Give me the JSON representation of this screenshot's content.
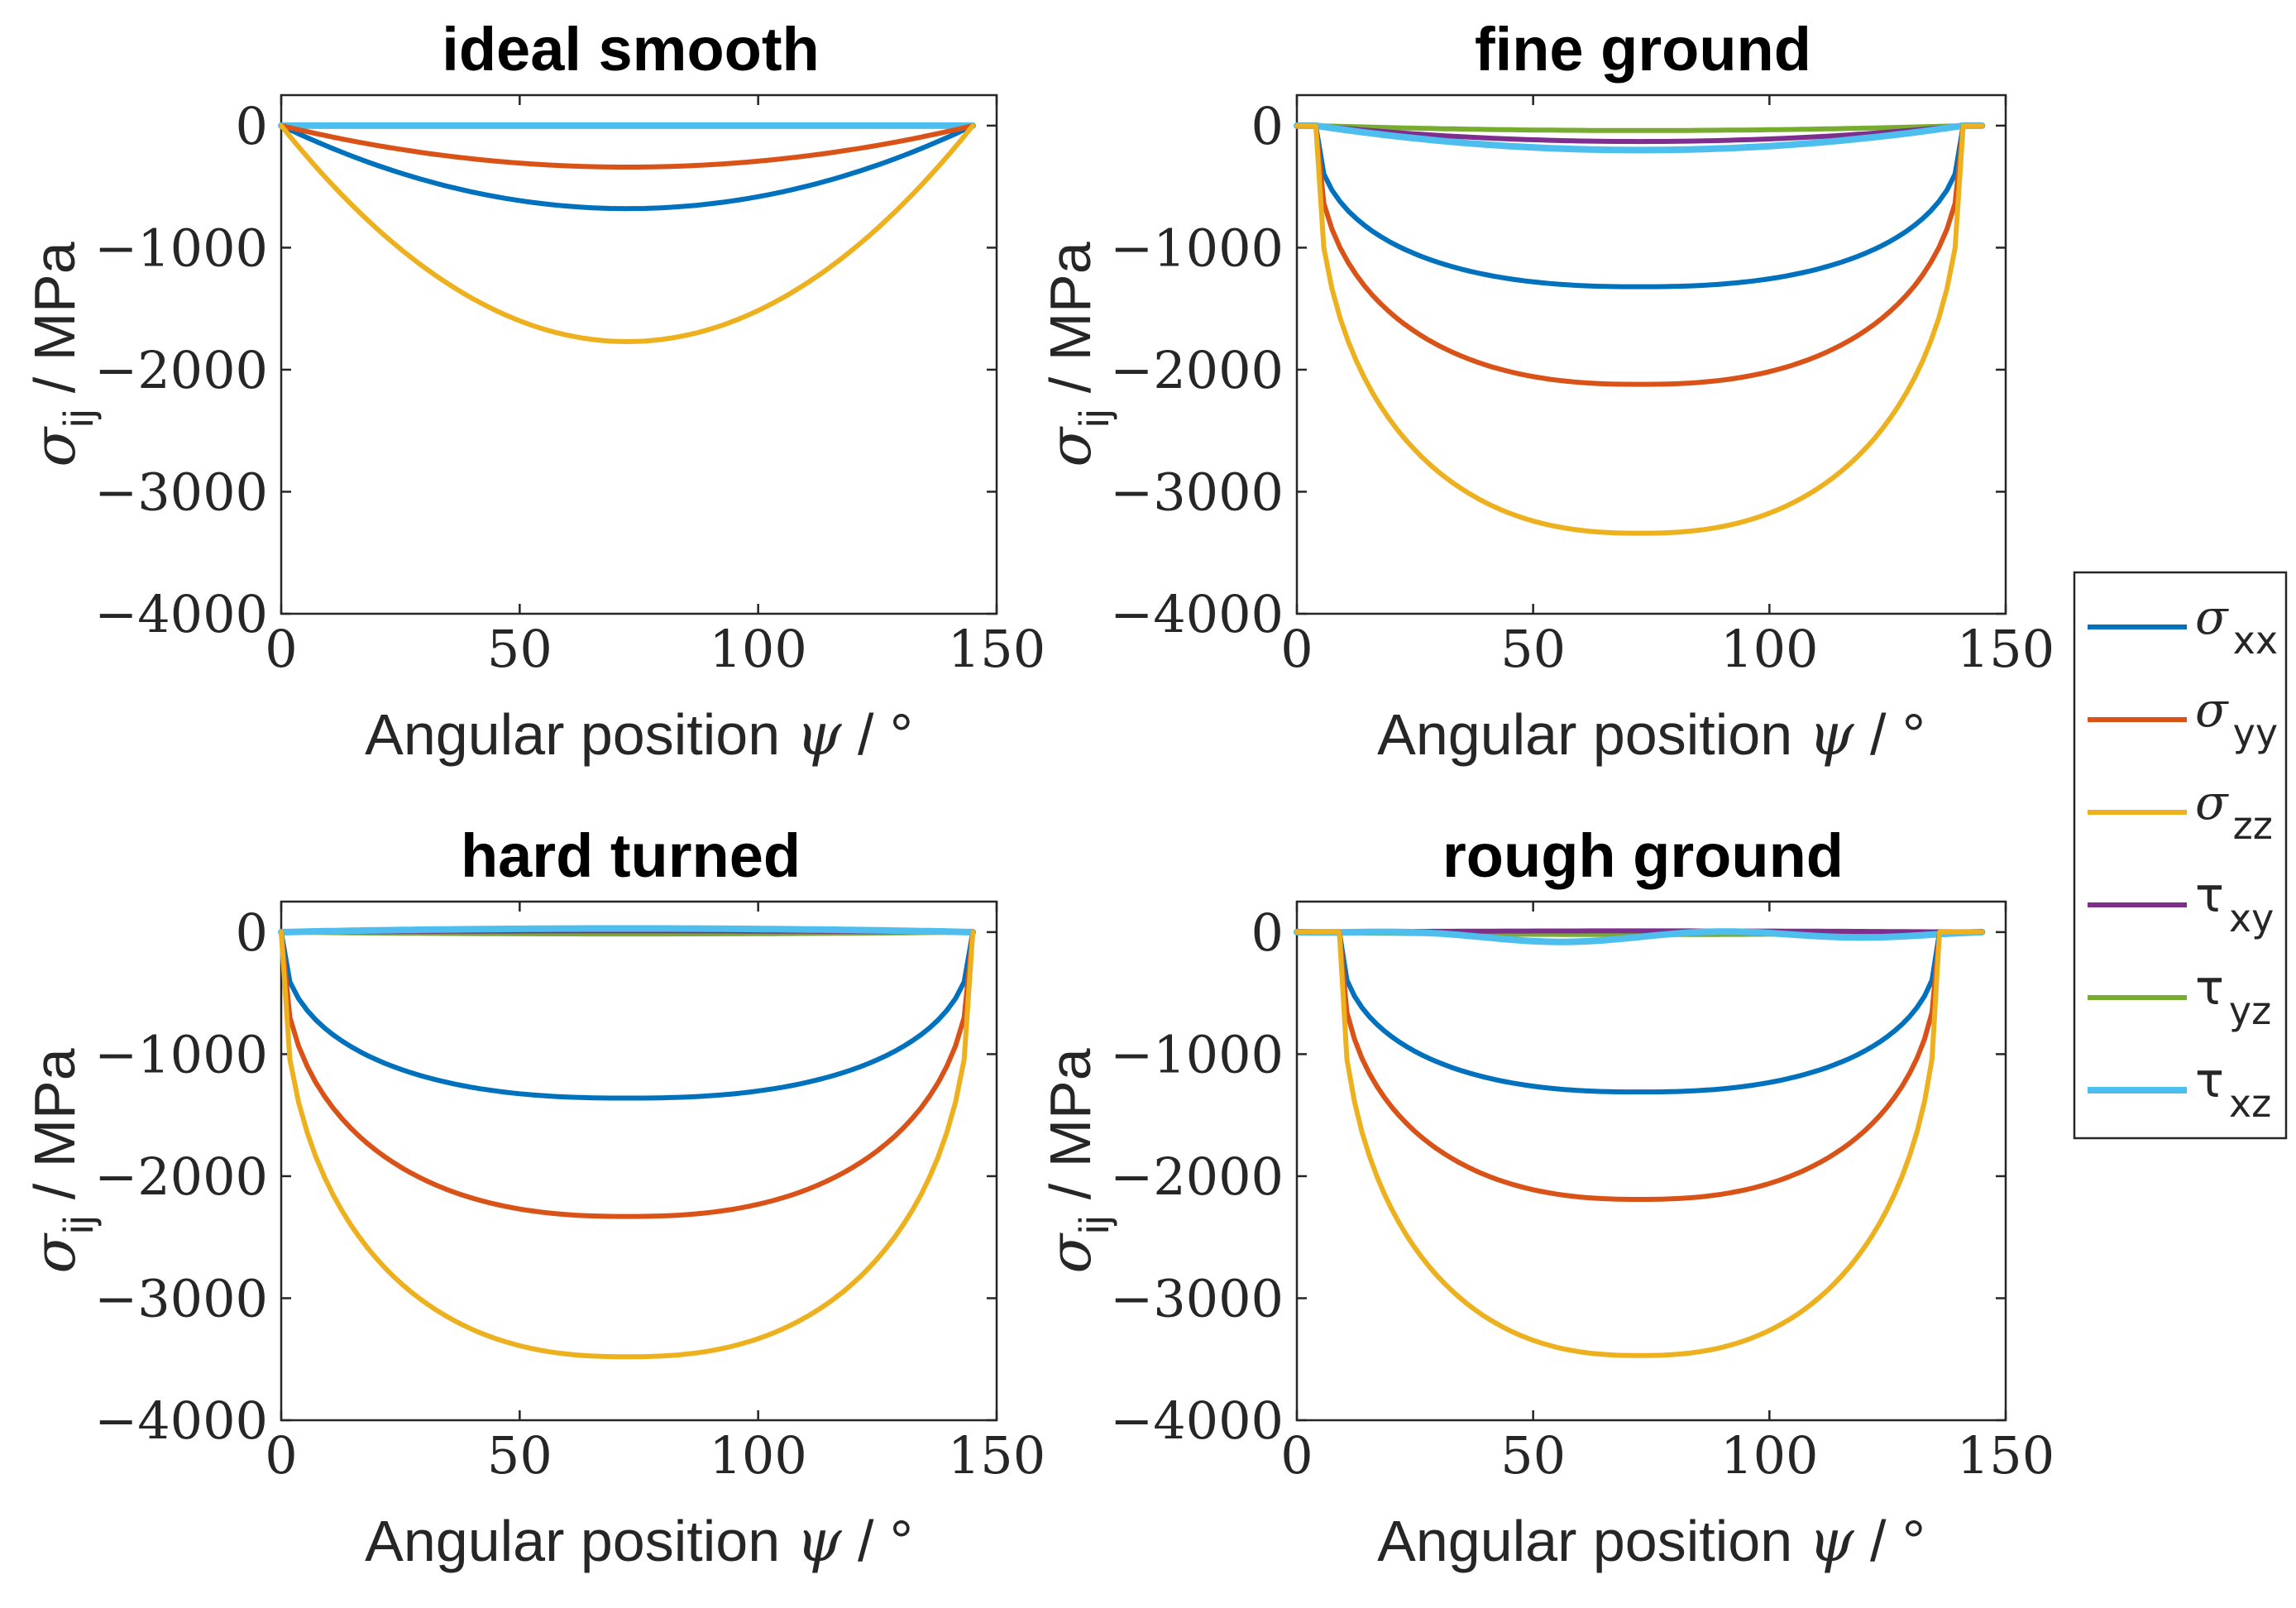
{
  "legend": [
    {
      "symbol": "σ",
      "sub": "xx",
      "color": "#0072BD"
    },
    {
      "symbol": "σ",
      "sub": "yy",
      "color": "#D95319"
    },
    {
      "symbol": "σ",
      "sub": "zz",
      "color": "#EDB120"
    },
    {
      "symbol": "τ",
      "sub": "xy",
      "color": "#7E2F8E"
    },
    {
      "symbol": "τ",
      "sub": "yz",
      "color": "#77AC30"
    },
    {
      "symbol": "τ",
      "sub": "xz",
      "color": "#4DBEEE"
    }
  ],
  "axis_labels": {
    "ylabel_symbol": "σ",
    "ylabel_sub": "ij",
    "ylabel_unit": " / MPa",
    "xlabel_text": "Angular position ",
    "xlabel_symbol": "ψ",
    "xlabel_unit": " / °"
  },
  "chart_data": [
    {
      "type": "line",
      "title": "ideal smooth",
      "xlabel": "Angular position ψ / °",
      "ylabel": "σij / MPa",
      "xlim": [
        0,
        150
      ],
      "ylim": [
        -4000,
        250
      ],
      "xticks": [
        0,
        50,
        100,
        150
      ],
      "yticks": [
        0,
        -1000,
        -2000,
        -3000,
        -4000
      ],
      "ytick_labels": [
        "0",
        "−1000",
        "−2000",
        "−3000",
        "−4000"
      ],
      "series": [
        {
          "name": "σxx",
          "x": [
            0,
            145
          ],
          "peak_x": 72.5,
          "peak": -680,
          "profile": "parabola",
          "edge": 0
        },
        {
          "name": "σyy",
          "x": [
            0,
            145
          ],
          "peak_x": 72.5,
          "peak": -340,
          "profile": "parabola",
          "edge": 0
        },
        {
          "name": "σzz",
          "x": [
            0,
            145
          ],
          "peak_x": 72.5,
          "peak": -1770,
          "profile": "parabola",
          "edge": 0
        },
        {
          "name": "τxy",
          "x": [
            0,
            145
          ],
          "peak_x": 72.5,
          "peak": 0,
          "profile": "flat",
          "edge": 0
        },
        {
          "name": "τyz",
          "x": [
            0,
            145
          ],
          "peak_x": 72.5,
          "peak": 0,
          "profile": "flat",
          "edge": 0
        },
        {
          "name": "τxz",
          "x": [
            0,
            145
          ],
          "peak_x": 72.5,
          "peak": 0,
          "profile": "flat",
          "edge": 0
        }
      ]
    },
    {
      "type": "line",
      "title": "fine ground",
      "xlabel": "Angular position ψ / °",
      "ylabel": "σij / MPa",
      "xlim": [
        0,
        150
      ],
      "ylim": [
        -4000,
        250
      ],
      "xticks": [
        0,
        50,
        100,
        150
      ],
      "yticks": [
        0,
        -1000,
        -2000,
        -3000,
        -4000
      ],
      "ytick_labels": [
        "0",
        "−1000",
        "−2000",
        "−3000",
        "−4000"
      ],
      "series": [
        {
          "name": "σxx",
          "x": [
            4,
            141
          ],
          "peak_x": 72.5,
          "peak": -1320,
          "profile": "bowl",
          "edge": -400
        },
        {
          "name": "σyy",
          "x": [
            4,
            141
          ],
          "peak_x": 72.5,
          "peak": -2120,
          "profile": "bowl",
          "edge": -700
        },
        {
          "name": "σzz",
          "x": [
            4,
            141
          ],
          "peak_x": 72.5,
          "peak": -3340,
          "profile": "bowl",
          "edge": -1200
        },
        {
          "name": "τxy",
          "x": [
            4,
            141
          ],
          "peak_x": 72.5,
          "peak": -130,
          "profile": "parabola",
          "edge": 0
        },
        {
          "name": "τyz",
          "x": [
            4,
            141
          ],
          "peak_x": 72.5,
          "peak": -40,
          "profile": "parabola",
          "edge": 0
        },
        {
          "name": "τxz",
          "x": [
            4,
            141
          ],
          "peak_x": 72.5,
          "peak": -200,
          "profile": "parabola",
          "edge": 0
        }
      ]
    },
    {
      "type": "line",
      "title": "hard turned",
      "xlabel": "Angular position ψ / °",
      "ylabel": "σij / MPa",
      "xlim": [
        0,
        150
      ],
      "ylim": [
        -4000,
        250
      ],
      "xticks": [
        0,
        50,
        100,
        150
      ],
      "yticks": [
        0,
        -1000,
        -2000,
        -3000,
        -4000
      ],
      "ytick_labels": [
        "0",
        "−1000",
        "−2000",
        "−3000",
        "−4000"
      ],
      "series": [
        {
          "name": "σxx",
          "x": [
            0,
            145
          ],
          "peak_x": 72.5,
          "peak": -1360,
          "profile": "bowl",
          "edge": -400
        },
        {
          "name": "σyy",
          "x": [
            0,
            145
          ],
          "peak_x": 72.5,
          "peak": -2330,
          "profile": "bowl",
          "edge": -700
        },
        {
          "name": "σzz",
          "x": [
            0,
            145
          ],
          "peak_x": 72.5,
          "peak": -3480,
          "profile": "bowl",
          "edge": -1100
        },
        {
          "name": "τxy",
          "x": [
            0,
            145
          ],
          "peak_x": 72.5,
          "peak": 10,
          "profile": "parabola",
          "edge": 0
        },
        {
          "name": "τyz",
          "x": [
            0,
            145
          ],
          "peak_x": 72.5,
          "peak": -15,
          "profile": "parabola",
          "edge": 0
        },
        {
          "name": "τxz",
          "x": [
            0,
            145
          ],
          "peak_x": 72.5,
          "peak": 30,
          "profile": "parabola",
          "edge": 0
        }
      ]
    },
    {
      "type": "line",
      "title": "rough ground",
      "xlabel": "Angular position ψ / °",
      "ylabel": "σij / MPa",
      "xlim": [
        0,
        150
      ],
      "ylim": [
        -4000,
        250
      ],
      "xticks": [
        0,
        50,
        100,
        150
      ],
      "yticks": [
        0,
        -1000,
        -2000,
        -3000,
        -4000
      ],
      "ytick_labels": [
        "0",
        "−1000",
        "−2000",
        "−3000",
        "−4000"
      ],
      "series": [
        {
          "name": "σxx",
          "x": [
            9,
            136
          ],
          "peak_x": 72.5,
          "peak": -1310,
          "profile": "bowl",
          "edge": -150
        },
        {
          "name": "σyy",
          "x": [
            9,
            136
          ],
          "peak_x": 72.5,
          "peak": -2190,
          "profile": "bowl",
          "edge": -300
        },
        {
          "name": "σzz",
          "x": [
            9,
            136
          ],
          "peak_x": 72.5,
          "peak": -3470,
          "profile": "bowl",
          "edge": -400
        },
        {
          "name": "τxy",
          "x": [
            0,
            145
          ],
          "peak_x": 72.5,
          "peak": 10,
          "profile": "parabola",
          "edge": 0
        },
        {
          "name": "τyz",
          "x": [
            0,
            145
          ],
          "peak_x": 72.5,
          "peak": -20,
          "profile": "parabola",
          "edge": 0
        },
        {
          "name": "τxz",
          "x": [
            0,
            145
          ],
          "peak_x": 72.5,
          "peak": -40,
          "profile": "wavy",
          "edge": 0
        }
      ]
    }
  ]
}
